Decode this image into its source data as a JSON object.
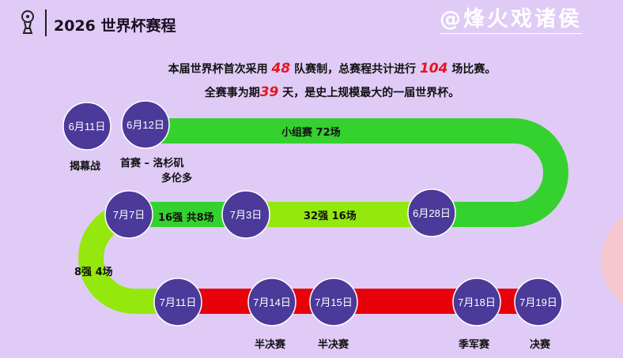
{
  "header": {
    "title": "2026 世界杯赛程",
    "icon": "trophy-icon"
  },
  "intro": {
    "line1_pre": "本届世界杯首次采用 ",
    "line1_num1": "48",
    "line1_mid": " 队赛制，总赛程共计进行 ",
    "line1_num2": "104",
    "line1_post": " 场比赛。",
    "line2_pre": "全赛事为期",
    "line2_num": "39",
    "line2_post": " 天，是史上规模最大的一届世界杯。"
  },
  "colors": {
    "bg": "#dfcbf6",
    "node": "#4b3a9a",
    "green": "#35d12f",
    "lime": "#94e80e",
    "red": "#e8000b",
    "highlight": "#e8141c"
  },
  "nodes": [
    {
      "date": "6月11日"
    },
    {
      "date": "6月12日"
    },
    {
      "date": "7月7日"
    },
    {
      "date": "7月3日"
    },
    {
      "date": "6月28日"
    },
    {
      "date": "7月11日"
    },
    {
      "date": "7月14日"
    },
    {
      "date": "7月15日"
    },
    {
      "date": "7月18日"
    },
    {
      "date": "7月19日"
    }
  ],
  "stages": {
    "group": "小组赛 72场",
    "r16": "16强 共8场",
    "r32": "32强 16场",
    "qf": "8强 4场"
  },
  "events": {
    "opening": "揭幕战",
    "first_a": "首赛 – 洛杉矶",
    "first_b": "多伦多",
    "semi1": "半决赛",
    "semi2": "半决赛",
    "third": "季军赛",
    "final": "决赛"
  },
  "watermark": "@烽火戏诸侯"
}
